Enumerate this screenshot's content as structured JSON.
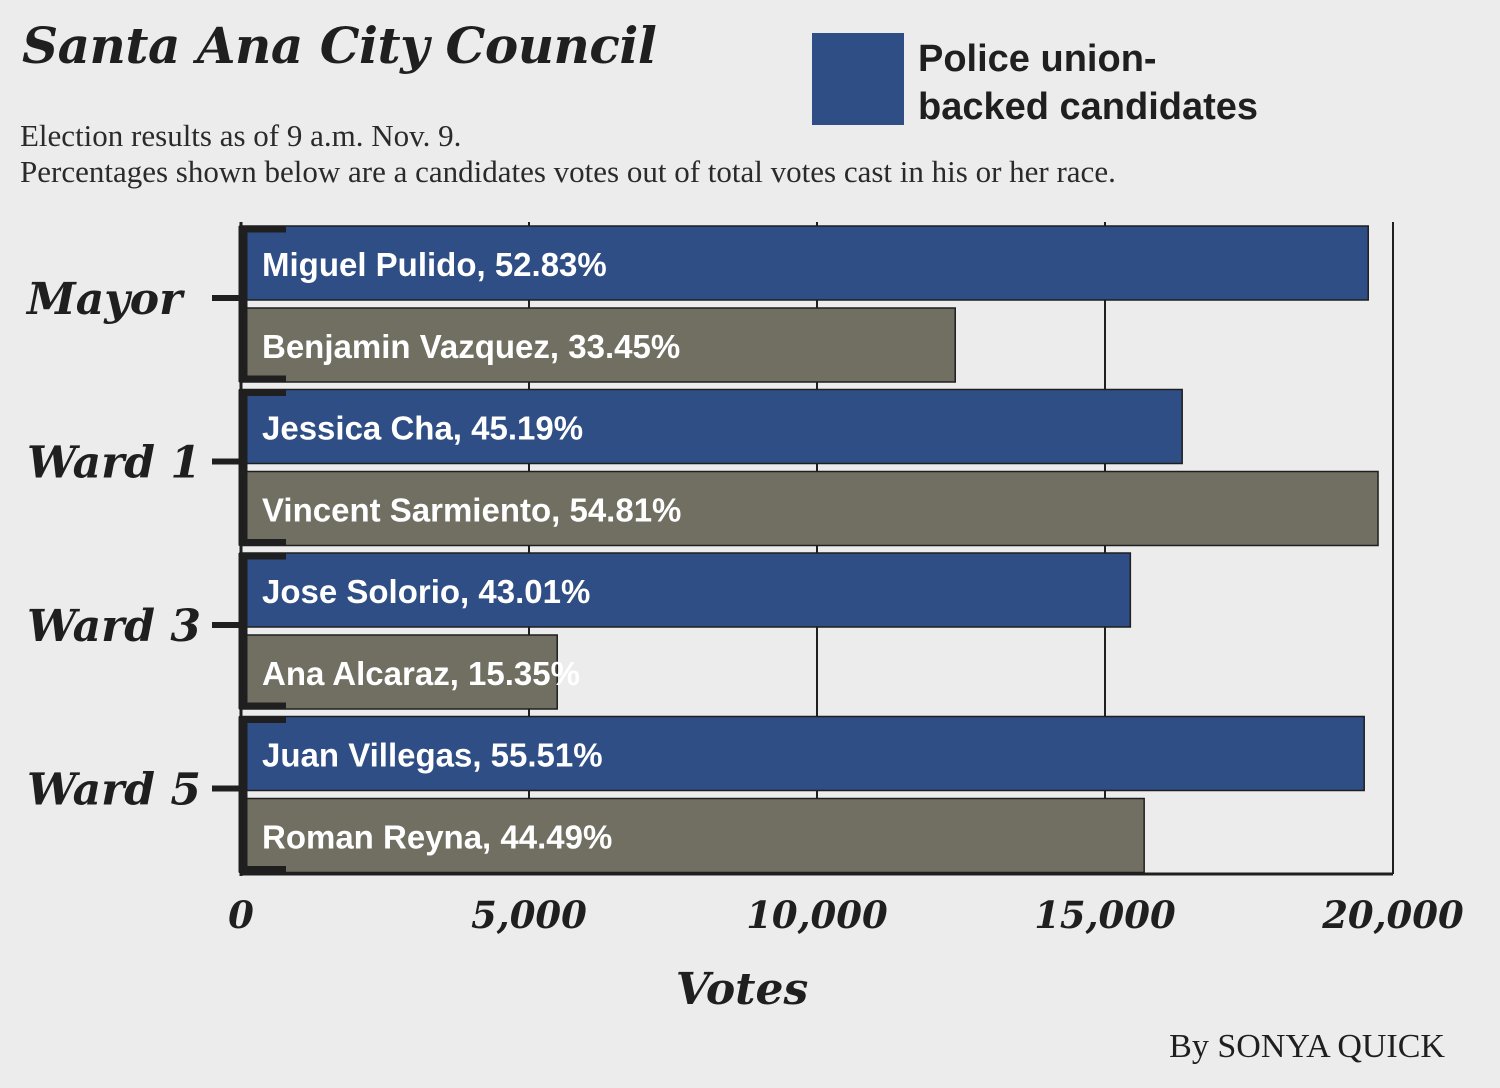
{
  "chart_data": {
    "type": "bar",
    "orientation": "horizontal",
    "title": "Santa Ana City Council",
    "subtitle_lines": [
      "Election results as of 9 a.m. Nov. 9.",
      "Percentages shown below are a candidates votes out of total votes cast in his or her race."
    ],
    "xlabel": "Votes",
    "xlim": [
      0,
      20000
    ],
    "xticks": [
      0,
      5000,
      10000,
      15000,
      20000
    ],
    "xtick_labels": [
      "0",
      "5,000",
      "10,000",
      "15,000",
      "20,000"
    ],
    "grid": true,
    "legend": {
      "placement": "top-right",
      "entries": [
        {
          "label": "Police union-backed candidates",
          "color": "#2f4e86"
        }
      ]
    },
    "colors": {
      "union_backed": "#2f4e86",
      "other": "#716f62"
    },
    "groups": [
      {
        "category": "Mayor",
        "bars": [
          {
            "label": "Miguel Pulido, 52.83%",
            "value": 19570,
            "union_backed": true
          },
          {
            "label": "Benjamin Vazquez, 33.45%",
            "value": 12400,
            "union_backed": false
          }
        ]
      },
      {
        "category": "Ward 1",
        "bars": [
          {
            "label": "Jessica Cha, 45.19%",
            "value": 16340,
            "union_backed": true
          },
          {
            "label": "Vincent Sarmiento, 54.81%",
            "value": 19740,
            "union_backed": false
          }
        ]
      },
      {
        "category": "Ward 3",
        "bars": [
          {
            "label": "Jose Solorio, 43.01%",
            "value": 15440,
            "union_backed": true
          },
          {
            "label": "Ana Alcaraz, 15.35%",
            "value": 5490,
            "union_backed": false
          }
        ]
      },
      {
        "category": "Ward 5",
        "bars": [
          {
            "label": "Juan Villegas, 55.51%",
            "value": 19500,
            "union_backed": true
          },
          {
            "label": "Roman Reyna, 44.49%",
            "value": 15680,
            "union_backed": false
          }
        ]
      }
    ]
  },
  "legend_line_1": "Police union-",
  "legend_line_2": "backed candidates",
  "byline": "By SONYA QUICK"
}
